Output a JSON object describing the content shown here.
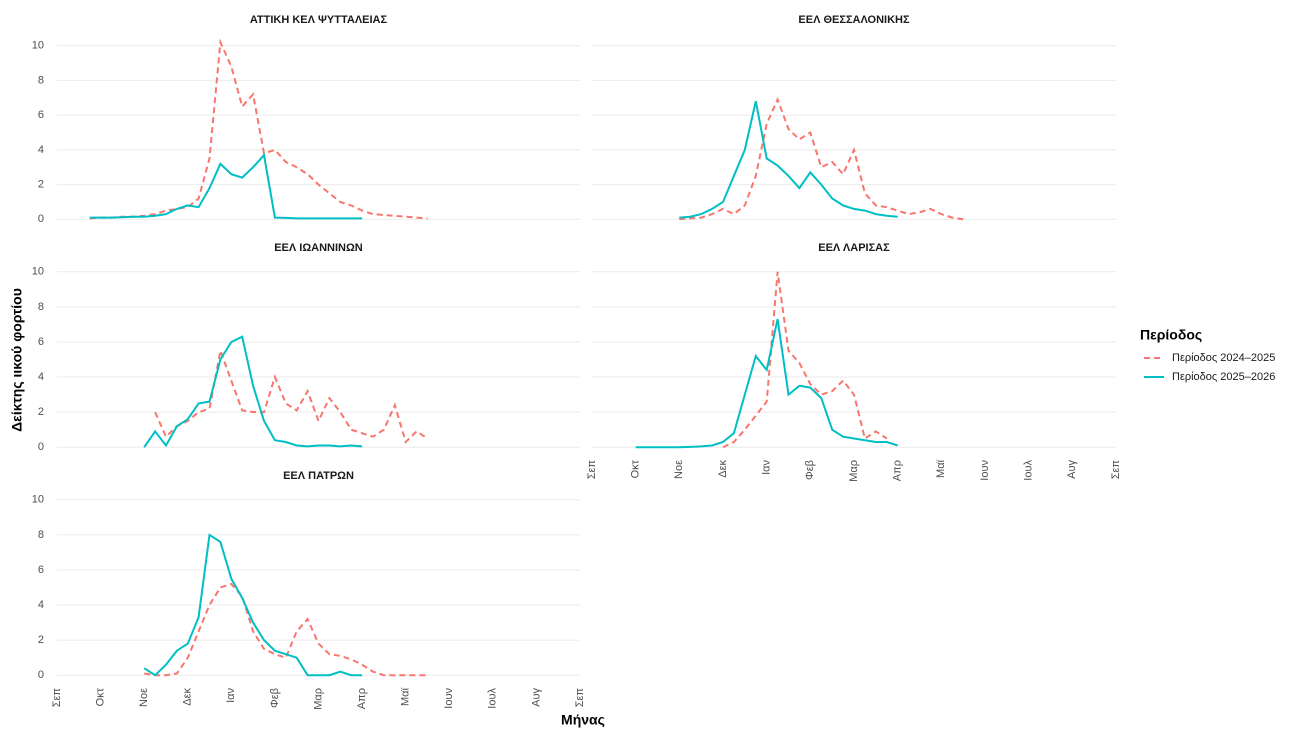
{
  "chart_data": [
    {
      "type": "line",
      "title": "ΑΤΤΙΚΗ ΚΕΛ ΨΥΤΤΑΛΕΙΑΣ",
      "x": [
        0.75,
        1,
        1.25,
        1.5,
        1.75,
        2,
        2.25,
        2.5,
        2.75,
        3,
        3.25,
        3.5,
        3.75,
        4,
        4.25,
        4.5,
        4.75,
        5,
        5.25,
        5.5,
        5.75,
        6,
        6.25,
        6.5,
        6.75,
        7,
        7.25,
        7.5,
        7.75,
        8,
        8.25,
        8.5
      ],
      "series": [
        {
          "name": "Περίοδος 2024–2025",
          "color": "#f8766d",
          "linestyle": "dashed",
          "values": [
            0.05,
            0.1,
            0.1,
            0.15,
            0.15,
            0.2,
            0.3,
            0.5,
            0.6,
            0.7,
            1.2,
            3.5,
            10.2,
            8.8,
            6.5,
            7.2,
            3.8,
            4.0,
            3.3,
            3.0,
            2.6,
            2.0,
            1.5,
            1.0,
            0.8,
            0.5,
            0.3,
            0.25,
            0.2,
            0.15,
            0.1,
            0.05
          ]
        },
        {
          "name": "Περίοδος 2025–2026",
          "color": "#00bfc4",
          "linestyle": "solid",
          "values": [
            0.1,
            0.1,
            0.1,
            0.12,
            0.15,
            0.15,
            0.2,
            0.3,
            0.6,
            0.8,
            0.7,
            1.8,
            3.2,
            2.6,
            2.4,
            3.0,
            3.7,
            0.1,
            0.08,
            0.05,
            0.05,
            0.05,
            0.05,
            0.05,
            0.05,
            0.05,
            null,
            null,
            null,
            null,
            null,
            null
          ]
        }
      ],
      "xlim": [
        0,
        12
      ],
      "ylim": [
        -0.5,
        10.5
      ],
      "yticks": [
        0,
        2,
        4,
        6,
        8,
        10
      ],
      "grid": true
    },
    {
      "type": "line",
      "title": "ΕΕΛ ΘΕΣΣΑΛΟΝΙΚΗΣ",
      "x": [
        2,
        2.25,
        2.5,
        2.75,
        3,
        3.25,
        3.5,
        3.75,
        4,
        4.25,
        4.5,
        4.75,
        5,
        5.25,
        5.5,
        5.75,
        6,
        6.25,
        6.5,
        6.75,
        7,
        7.25,
        7.5,
        7.75,
        8,
        8.25,
        8.5
      ],
      "series": [
        {
          "name": "Περίοδος 2024–2025",
          "color": "#f8766d",
          "linestyle": "dashed",
          "values": [
            0.0,
            0.05,
            0.1,
            0.3,
            0.6,
            0.3,
            0.8,
            2.5,
            5.5,
            6.9,
            5.2,
            4.6,
            5.0,
            3.0,
            3.3,
            2.6,
            4.0,
            1.5,
            0.8,
            0.7,
            0.5,
            0.3,
            0.4,
            0.6,
            0.3,
            0.1,
            0.0
          ]
        },
        {
          "name": "Περίοδος 2025–2026",
          "color": "#00bfc4",
          "linestyle": "solid",
          "values": [
            0.1,
            0.15,
            0.3,
            0.6,
            1.0,
            2.5,
            4.0,
            6.8,
            3.5,
            3.1,
            2.5,
            1.8,
            2.7,
            2.0,
            1.2,
            0.8,
            0.6,
            0.5,
            0.3,
            0.2,
            0.15,
            null,
            null,
            null,
            null,
            null,
            null
          ]
        }
      ],
      "xlim": [
        0,
        12
      ],
      "ylim": [
        -0.5,
        10.5
      ],
      "yticks": [
        0,
        2,
        4,
        6,
        8,
        10
      ],
      "grid": true
    },
    {
      "type": "line",
      "title": "ΕΕΛ ΙΩΑΝΝΙΝΩΝ",
      "x": [
        2,
        2.25,
        2.5,
        2.75,
        3,
        3.25,
        3.5,
        3.75,
        4,
        4.25,
        4.5,
        4.75,
        5,
        5.25,
        5.5,
        5.75,
        6,
        6.25,
        6.5,
        6.75,
        7,
        7.25,
        7.5,
        7.75,
        8,
        8.25,
        8.5
      ],
      "series": [
        {
          "name": "Περίοδος 2024–2025",
          "color": "#f8766d",
          "linestyle": "dashed",
          "values": [
            null,
            2.0,
            0.6,
            1.2,
            1.5,
            2.0,
            2.2,
            5.5,
            3.8,
            2.1,
            2.0,
            2.0,
            4.0,
            2.5,
            2.1,
            3.2,
            1.5,
            2.8,
            2.0,
            1.0,
            0.8,
            0.6,
            1.0,
            2.4,
            0.3,
            0.9,
            0.5
          ]
        },
        {
          "name": "Περίοδος 2025–2026",
          "color": "#00bfc4",
          "linestyle": "solid",
          "values": [
            0,
            0.9,
            0.1,
            1.2,
            1.6,
            2.5,
            2.6,
            5.0,
            6.0,
            6.3,
            3.5,
            1.5,
            0.4,
            0.3,
            0.1,
            0.05,
            0.1,
            0.1,
            0.05,
            0.1,
            0.05,
            null,
            null,
            null,
            null,
            null,
            null
          ]
        }
      ],
      "xlim": [
        0,
        12
      ],
      "ylim": [
        -0.5,
        10.5
      ],
      "yticks": [
        0,
        2,
        4,
        6,
        8,
        10
      ],
      "grid": true
    },
    {
      "type": "line",
      "title": "ΕΕΛ ΛΑΡΙΣΑΣ",
      "x": [
        1,
        1.25,
        1.5,
        1.75,
        2,
        2.25,
        2.5,
        2.75,
        3,
        3.25,
        3.5,
        3.75,
        4,
        4.25,
        4.5,
        4.75,
        5,
        5.25,
        5.5,
        5.75,
        6,
        6.25,
        6.5,
        6.75,
        7
      ],
      "series": [
        {
          "name": "Περίοδος 2024–2025",
          "color": "#f8766d",
          "linestyle": "dashed",
          "values": [
            null,
            null,
            null,
            null,
            null,
            null,
            null,
            null,
            0.0,
            0.3,
            1.0,
            1.8,
            2.6,
            10.0,
            5.5,
            4.8,
            3.6,
            3.0,
            3.2,
            3.8,
            3.0,
            0.5,
            0.9,
            0.5,
            null
          ]
        },
        {
          "name": "Περίοδος 2025–2026",
          "color": "#00bfc4",
          "linestyle": "solid",
          "values": [
            0,
            0,
            0,
            0,
            0,
            0.02,
            0.05,
            0.1,
            0.3,
            0.8,
            3.0,
            5.2,
            4.4,
            7.3,
            3.0,
            3.5,
            3.4,
            2.8,
            1.0,
            0.6,
            0.5,
            0.4,
            0.3,
            0.3,
            0.1
          ]
        }
      ],
      "xlim": [
        0,
        12
      ],
      "ylim": [
        -0.5,
        10.5
      ],
      "yticks": [
        0,
        2,
        4,
        6,
        8,
        10
      ],
      "grid": true,
      "xticks": [
        {
          "value": 0,
          "label": "Σεπ"
        },
        {
          "value": 1,
          "label": "Οκτ"
        },
        {
          "value": 2,
          "label": "Νοε"
        },
        {
          "value": 3,
          "label": "Δεκ"
        },
        {
          "value": 4,
          "label": "Ιαν"
        },
        {
          "value": 5,
          "label": "Φεβ"
        },
        {
          "value": 6,
          "label": "Μαρ"
        },
        {
          "value": 7,
          "label": "Απρ"
        },
        {
          "value": 8,
          "label": "Μαϊ"
        },
        {
          "value": 9,
          "label": "Ιουν"
        },
        {
          "value": 10,
          "label": "Ιουλ"
        },
        {
          "value": 11,
          "label": "Αυγ"
        },
        {
          "value": 12,
          "label": "Σεπ"
        }
      ]
    },
    {
      "type": "line",
      "title": "ΕΕΛ ΠΑΤΡΩΝ",
      "x": [
        2,
        2.25,
        2.5,
        2.75,
        3,
        3.25,
        3.5,
        3.75,
        4,
        4.25,
        4.5,
        4.75,
        5,
        5.25,
        5.5,
        5.75,
        6,
        6.25,
        6.5,
        6.75,
        7,
        7.25,
        7.5,
        7.75,
        8,
        8.25,
        8.5
      ],
      "series": [
        {
          "name": "Περίοδος 2024–2025",
          "color": "#f8766d",
          "linestyle": "dashed",
          "values": [
            0.1,
            0,
            0,
            0.1,
            1.0,
            2.5,
            4.0,
            5.0,
            5.2,
            4.5,
            2.5,
            1.5,
            1.2,
            1.0,
            2.5,
            3.2,
            1.8,
            1.2,
            1.1,
            0.9,
            0.6,
            0.2,
            0,
            0,
            0,
            0,
            0
          ]
        },
        {
          "name": "Περίοδος 2025–2026",
          "color": "#00bfc4",
          "linestyle": "solid",
          "values": [
            0.4,
            0.0,
            0.6,
            1.4,
            1.8,
            3.3,
            8.0,
            7.6,
            5.5,
            4.4,
            3.0,
            2.0,
            1.4,
            1.2,
            1.0,
            0,
            0,
            0,
            0.2,
            0,
            0,
            null,
            null,
            null,
            null,
            null,
            null
          ]
        }
      ],
      "xlim": [
        0,
        12
      ],
      "ylim": [
        -0.5,
        10.5
      ],
      "yticks": [
        0,
        2,
        4,
        6,
        8,
        10
      ],
      "grid": true,
      "xticks": [
        {
          "value": 0,
          "label": "Σεπ"
        },
        {
          "value": 1,
          "label": "Οκτ"
        },
        {
          "value": 2,
          "label": "Νοε"
        },
        {
          "value": 3,
          "label": "Δεκ"
        },
        {
          "value": 4,
          "label": "Ιαν"
        },
        {
          "value": 5,
          "label": "Φεβ"
        },
        {
          "value": 6,
          "label": "Μαρ"
        },
        {
          "value": 7,
          "label": "Απρ"
        },
        {
          "value": 8,
          "label": "Μαϊ"
        },
        {
          "value": 9,
          "label": "Ιουν"
        },
        {
          "value": 10,
          "label": "Ιουλ"
        },
        {
          "value": 11,
          "label": "Αυγ"
        },
        {
          "value": 12,
          "label": "Σεπ"
        }
      ]
    }
  ],
  "y_label": "Δείκτης ιικού φορτίου",
  "x_label": "Μήνας",
  "legend": {
    "title": "Περίοδος",
    "position": "right"
  }
}
